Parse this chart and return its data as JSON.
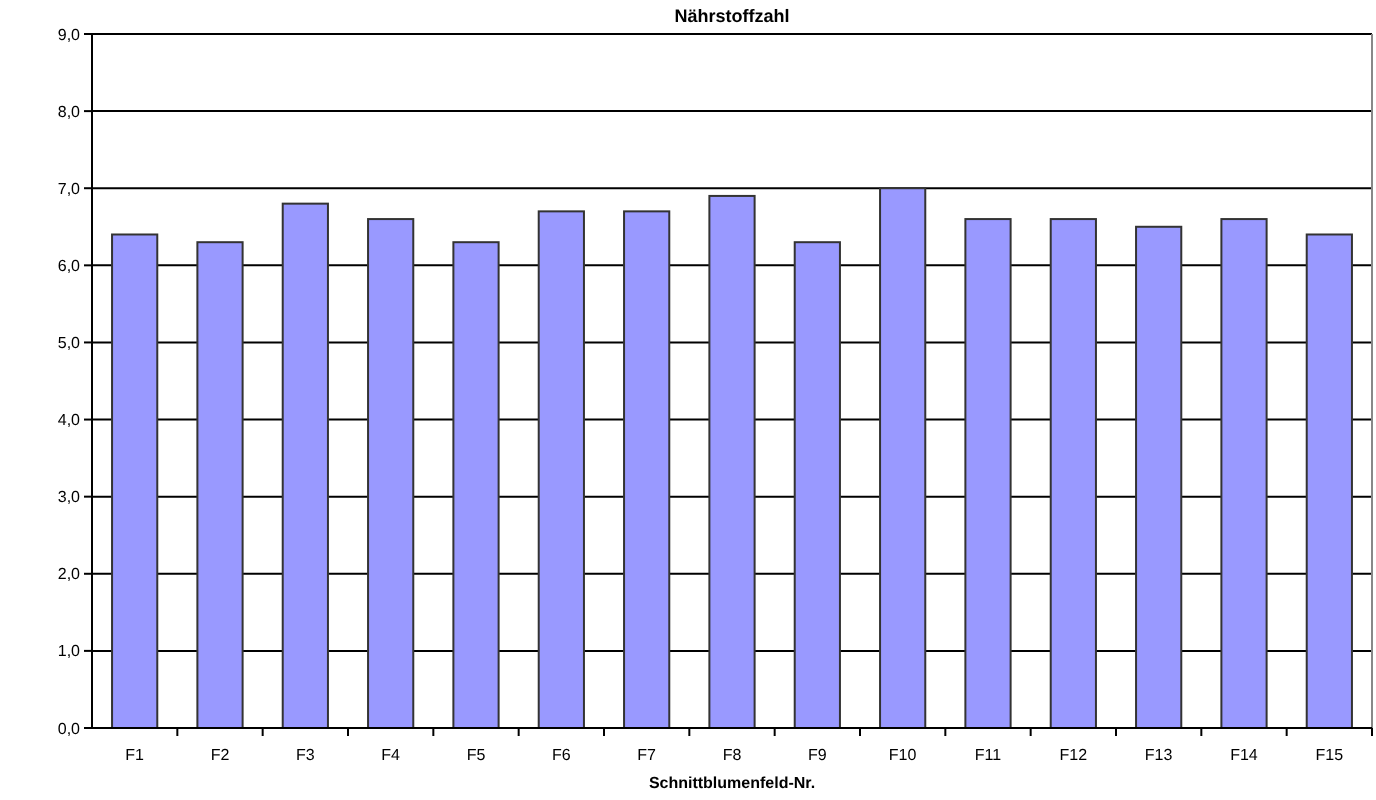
{
  "chart_data": {
    "type": "bar",
    "title": "Nährstoffzahl",
    "xlabel": "Schnittblumenfeld-Nr.",
    "categories": [
      "F1",
      "F2",
      "F3",
      "F4",
      "F5",
      "F6",
      "F7",
      "F8",
      "F9",
      "F10",
      "F11",
      "F12",
      "F13",
      "F14",
      "F15"
    ],
    "values": [
      6.4,
      6.3,
      6.8,
      6.6,
      6.3,
      6.7,
      6.7,
      6.9,
      6.3,
      7.0,
      6.6,
      6.6,
      6.5,
      6.6,
      6.4
    ],
    "color": "#9999ff",
    "ylim": [
      0,
      9
    ],
    "yticks": [
      {
        "value": 0,
        "label": "0,0"
      },
      {
        "value": 1,
        "label": "1,0"
      },
      {
        "value": 2,
        "label": "2,0"
      },
      {
        "value": 3,
        "label": "3,0"
      },
      {
        "value": 4,
        "label": "4,0"
      },
      {
        "value": 5,
        "label": "5,0"
      },
      {
        "value": 6,
        "label": "6,0"
      },
      {
        "value": 7,
        "label": "7,0"
      },
      {
        "value": 8,
        "label": "8,0"
      },
      {
        "value": 9,
        "label": "9,0"
      }
    ],
    "grid": "y"
  }
}
